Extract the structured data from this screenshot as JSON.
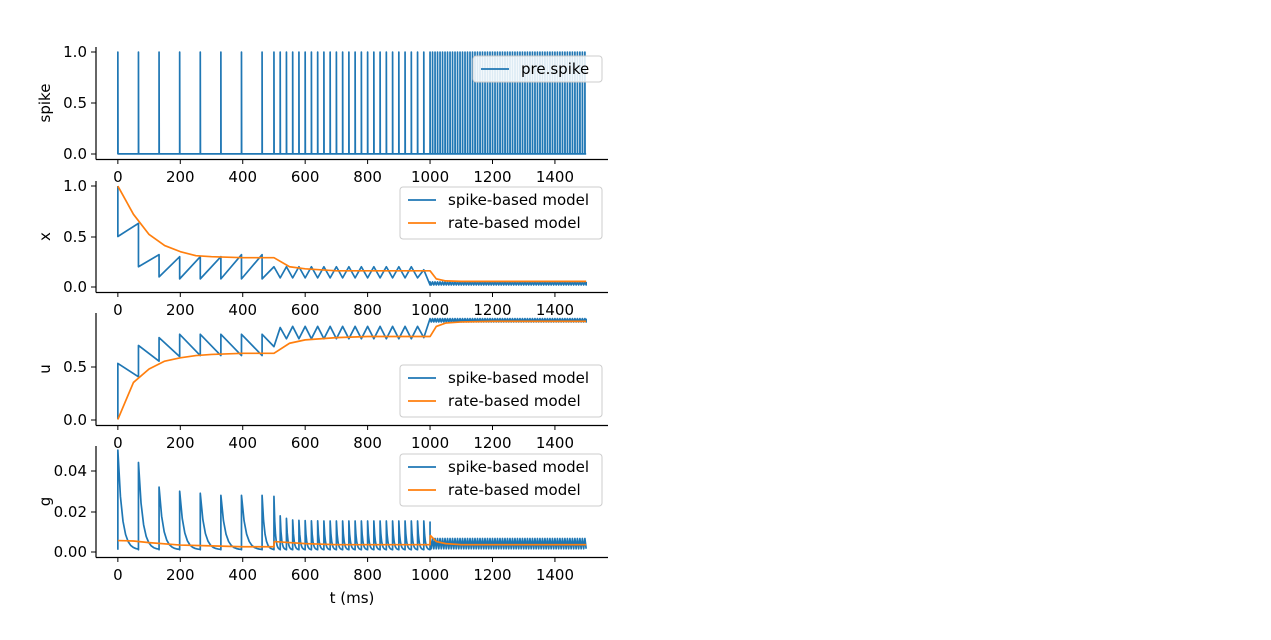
{
  "figure": {
    "colors": {
      "spike_based": "#1f77b4",
      "rate_based": "#ff7f0e",
      "axis": "#000000",
      "legend_border": "#cccccc"
    }
  },
  "chart_data": [
    {
      "type": "line",
      "id": "spike",
      "ylabel": "spike",
      "xlabel": "",
      "xlim": [
        -70,
        1570
      ],
      "ylim": [
        -0.05,
        1.05
      ],
      "xticks": [
        "0",
        "200",
        "400",
        "600",
        "800",
        "1000",
        "1200",
        "1400"
      ],
      "yticks": [
        "0.0",
        "0.5",
        "1.0"
      ],
      "legend": {
        "loc": "upper right",
        "entries": [
          "pre.spike"
        ]
      },
      "spike_times": [
        0,
        66,
        132,
        198,
        264,
        330,
        396,
        462,
        500,
        520,
        540,
        560,
        580,
        600,
        620,
        640,
        660,
        680,
        700,
        720,
        740,
        760,
        780,
        800,
        820,
        840,
        860,
        880,
        900,
        920,
        940,
        960,
        980,
        1000,
        1008,
        1016,
        1024,
        1032,
        1040,
        1048,
        1056,
        1064,
        1072,
        1080,
        1088,
        1096,
        1104,
        1112,
        1120,
        1128,
        1136,
        1144,
        1152,
        1160,
        1168,
        1176,
        1184,
        1192,
        1200,
        1208,
        1216,
        1224,
        1232,
        1240,
        1248,
        1256,
        1264,
        1272,
        1280,
        1288,
        1296,
        1304,
        1312,
        1320,
        1328,
        1336,
        1344,
        1352,
        1360,
        1368,
        1376,
        1384,
        1392,
        1400,
        1408,
        1416,
        1424,
        1432,
        1440,
        1448,
        1456,
        1464,
        1472,
        1480,
        1488,
        1496
      ],
      "series": [
        {
          "name": "pre.spike",
          "baseline": 0,
          "spike_value": 1,
          "t_end": 1500
        }
      ]
    },
    {
      "type": "line",
      "id": "x",
      "ylabel": "x",
      "xlabel": "",
      "xlim": [
        -70,
        1570
      ],
      "ylim": [
        -0.05,
        1.05
      ],
      "xticks": [
        "0",
        "200",
        "400",
        "600",
        "800",
        "1000",
        "1200",
        "1400"
      ],
      "yticks": [
        "0.0",
        "0.5",
        "1.0"
      ],
      "legend": {
        "loc": "upper right",
        "entries": [
          "spike-based model",
          "rate-based model"
        ]
      },
      "series": [
        {
          "name": "spike-based model",
          "x": [
            0,
            0,
            66,
            66,
            132,
            132,
            198,
            198,
            264,
            264,
            330,
            330,
            396,
            396,
            462,
            462,
            500,
            520,
            540,
            560,
            580,
            600,
            620,
            640,
            660,
            680,
            700,
            720,
            740,
            760,
            780,
            800,
            820,
            840,
            860,
            880,
            900,
            920,
            940,
            960,
            980,
            1000,
            1200,
            1400,
            1500
          ],
          "y": [
            1.0,
            0.5,
            0.63,
            0.2,
            0.32,
            0.1,
            0.3,
            0.08,
            0.3,
            0.08,
            0.3,
            0.08,
            0.32,
            0.08,
            0.32,
            0.08,
            0.2,
            0.09,
            0.2,
            0.09,
            0.2,
            0.09,
            0.2,
            0.09,
            0.2,
            0.09,
            0.2,
            0.09,
            0.2,
            0.09,
            0.2,
            0.09,
            0.2,
            0.09,
            0.2,
            0.09,
            0.2,
            0.09,
            0.2,
            0.09,
            0.17,
            0.02,
            0.05,
            0.02,
            0.05
          ]
        },
        {
          "name": "rate-based model",
          "x": [
            0,
            50,
            100,
            150,
            200,
            250,
            300,
            400,
            500,
            550,
            600,
            700,
            800,
            900,
            1000,
            1020,
            1050,
            1100,
            1200,
            1300,
            1400,
            1500
          ],
          "y": [
            1.0,
            0.72,
            0.52,
            0.41,
            0.35,
            0.31,
            0.3,
            0.29,
            0.29,
            0.2,
            0.18,
            0.16,
            0.16,
            0.16,
            0.16,
            0.08,
            0.06,
            0.055,
            0.055,
            0.055,
            0.055,
            0.055
          ]
        }
      ]
    },
    {
      "type": "line",
      "id": "u",
      "ylabel": "u",
      "xlabel": "",
      "xlim": [
        -70,
        1570
      ],
      "ylim": [
        -0.05,
        0.95
      ],
      "xticks": [
        "0",
        "200",
        "400",
        "600",
        "800",
        "1000",
        "1200",
        "1400"
      ],
      "yticks": [
        "0.0",
        "0.5"
      ],
      "legend": {
        "loc": "lower right",
        "entries": [
          "spike-based model",
          "rate-based model"
        ]
      },
      "series": [
        {
          "name": "spike-based model",
          "x": [
            0,
            0,
            66,
            66,
            132,
            132,
            198,
            198,
            264,
            264,
            330,
            330,
            396,
            396,
            462,
            462,
            500,
            520,
            540,
            560,
            580,
            600,
            620,
            640,
            660,
            680,
            700,
            720,
            740,
            760,
            780,
            800,
            820,
            840,
            860,
            880,
            900,
            920,
            940,
            960,
            980,
            1000,
            1200,
            1400,
            1500
          ],
          "y": [
            0.0,
            0.5,
            0.38,
            0.66,
            0.52,
            0.73,
            0.56,
            0.76,
            0.57,
            0.76,
            0.57,
            0.76,
            0.57,
            0.76,
            0.57,
            0.76,
            0.65,
            0.82,
            0.72,
            0.83,
            0.72,
            0.83,
            0.72,
            0.83,
            0.72,
            0.83,
            0.72,
            0.83,
            0.72,
            0.83,
            0.72,
            0.83,
            0.72,
            0.83,
            0.72,
            0.83,
            0.72,
            0.83,
            0.72,
            0.83,
            0.73,
            0.9,
            0.9,
            0.87,
            0.9
          ]
        },
        {
          "name": "rate-based model",
          "x": [
            0,
            50,
            100,
            150,
            200,
            250,
            300,
            400,
            500,
            550,
            600,
            700,
            800,
            900,
            1000,
            1020,
            1050,
            1100,
            1200,
            1300,
            1400,
            1500
          ],
          "y": [
            0.0,
            0.33,
            0.45,
            0.52,
            0.55,
            0.57,
            0.58,
            0.59,
            0.59,
            0.68,
            0.71,
            0.73,
            0.74,
            0.74,
            0.74,
            0.83,
            0.86,
            0.87,
            0.875,
            0.875,
            0.875,
            0.875
          ]
        }
      ]
    },
    {
      "type": "line",
      "id": "g",
      "ylabel": "g",
      "xlabel": "t (ms)",
      "xlim": [
        -70,
        1570
      ],
      "ylim": [
        -0.002,
        0.052
      ],
      "xticks": [
        "0",
        "200",
        "400",
        "600",
        "800",
        "1000",
        "1200",
        "1400"
      ],
      "yticks": [
        "0.00",
        "0.02",
        "0.04"
      ],
      "legend": {
        "loc": "upper right",
        "entries": [
          "spike-based model",
          "rate-based model"
        ]
      },
      "series": [
        {
          "name": "spike-based model",
          "spike_peaks": [
            0.05,
            0.044,
            0.032,
            0.03,
            0.029,
            0.028,
            0.028,
            0.028,
            0.0275,
            0.018,
            0.0168,
            0.016,
            0.0158,
            0.0157,
            0.0156,
            0.0156,
            0.0155,
            0.0155,
            0.0155,
            0.0155,
            0.0155,
            0.0155,
            0.0155,
            0.0155,
            0.0155,
            0.0155,
            0.0155,
            0.0155,
            0.0155,
            0.0155,
            0.0155,
            0.0155,
            0.0155
          ],
          "trough_floor": 0.0015,
          "high_rate_band": [
            0.002,
            0.007
          ],
          "high_rate_start": 1000,
          "t_end": 1500
        },
        {
          "name": "rate-based model",
          "x": [
            0,
            50,
            100,
            200,
            300,
            400,
            500,
            501,
            600,
            700,
            800,
            900,
            1000,
            1001,
            1020,
            1050,
            1100,
            1200,
            1300,
            1400,
            1500
          ],
          "y": [
            0.006,
            0.0058,
            0.005,
            0.0038,
            0.0034,
            0.003,
            0.003,
            0.0055,
            0.0045,
            0.004,
            0.004,
            0.004,
            0.004,
            0.0085,
            0.0055,
            0.0045,
            0.004,
            0.004,
            0.004,
            0.004,
            0.004
          ]
        }
      ]
    }
  ]
}
